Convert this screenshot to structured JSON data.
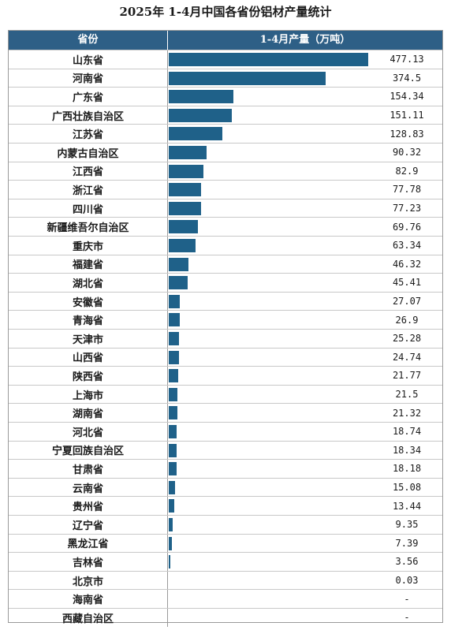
{
  "title": "2025年 1-4月中国各省份铝材产量统计",
  "chart_data": {
    "type": "bar",
    "title": "2025年 1-4月中国各省份铝材产量统计",
    "column_headers": [
      "省份",
      "1-4月产量（万吨）"
    ],
    "xlim": [
      0,
      480
    ],
    "rows": [
      {
        "name": "山东省",
        "value": 477.13,
        "label": "477.13"
      },
      {
        "name": "河南省",
        "value": 374.5,
        "label": "374.5"
      },
      {
        "name": "广东省",
        "value": 154.34,
        "label": "154.34"
      },
      {
        "name": "广西壮族自治区",
        "value": 151.11,
        "label": "151.11"
      },
      {
        "name": "江苏省",
        "value": 128.83,
        "label": "128.83"
      },
      {
        "name": "内蒙古自治区",
        "value": 90.32,
        "label": "90.32"
      },
      {
        "name": "江西省",
        "value": 82.9,
        "label": "82.9"
      },
      {
        "name": "浙江省",
        "value": 77.78,
        "label": "77.78"
      },
      {
        "name": "四川省",
        "value": 77.23,
        "label": "77.23"
      },
      {
        "name": "新疆维吾尔自治区",
        "value": 69.76,
        "label": "69.76"
      },
      {
        "name": "重庆市",
        "value": 63.34,
        "label": "63.34"
      },
      {
        "name": "福建省",
        "value": 46.32,
        "label": "46.32"
      },
      {
        "name": "湖北省",
        "value": 45.41,
        "label": "45.41"
      },
      {
        "name": "安徽省",
        "value": 27.07,
        "label": "27.07"
      },
      {
        "name": "青海省",
        "value": 26.9,
        "label": "26.9"
      },
      {
        "name": "天津市",
        "value": 25.28,
        "label": "25.28"
      },
      {
        "name": "山西省",
        "value": 24.74,
        "label": "24.74"
      },
      {
        "name": "陕西省",
        "value": 21.77,
        "label": "21.77"
      },
      {
        "name": "上海市",
        "value": 21.5,
        "label": "21.5"
      },
      {
        "name": "湖南省",
        "value": 21.32,
        "label": "21.32"
      },
      {
        "name": "河北省",
        "value": 18.74,
        "label": "18.74"
      },
      {
        "name": "宁夏回族自治区",
        "value": 18.34,
        "label": "18.34"
      },
      {
        "name": "甘肃省",
        "value": 18.18,
        "label": "18.18"
      },
      {
        "name": "云南省",
        "value": 15.08,
        "label": "15.08"
      },
      {
        "name": "贵州省",
        "value": 13.44,
        "label": "13.44"
      },
      {
        "name": "辽宁省",
        "value": 9.35,
        "label": "9.35"
      },
      {
        "name": "黑龙江省",
        "value": 7.39,
        "label": "7.39"
      },
      {
        "name": "吉林省",
        "value": 3.56,
        "label": "3.56"
      },
      {
        "name": "北京市",
        "value": 0.03,
        "label": "0.03"
      },
      {
        "name": "海南省",
        "value": null,
        "label": "-"
      },
      {
        "name": "西藏自治区",
        "value": null,
        "label": "-"
      }
    ],
    "bar_color": "#1f6189",
    "header_color": "#2e5f86"
  }
}
